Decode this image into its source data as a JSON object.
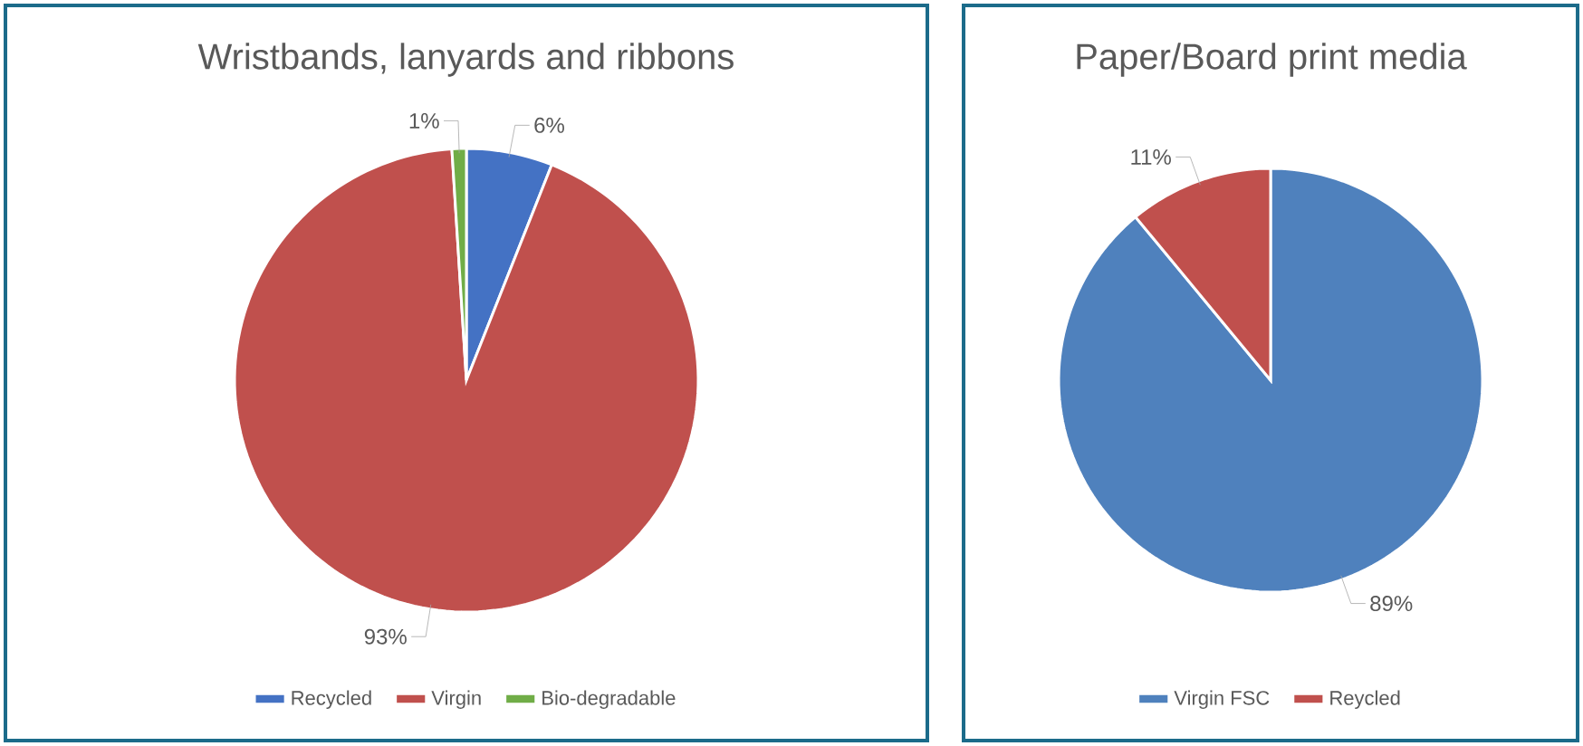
{
  "chart_data": [
    {
      "type": "pie",
      "title": "Wristbands, lanyards and ribbons",
      "categories": [
        "Recycled",
        "Virgin",
        "Bio-degradable"
      ],
      "values": [
        6,
        93,
        1
      ],
      "value_labels": [
        "6%",
        "93%",
        "1%"
      ],
      "colors": [
        "#4472c4",
        "#c0504d",
        "#70ad47"
      ],
      "legend": "bottom"
    },
    {
      "type": "pie",
      "title": "Paper/Board print media",
      "categories": [
        "Virgin FSC",
        "Reycled"
      ],
      "values": [
        89,
        11
      ],
      "value_labels": [
        "89%",
        "11%"
      ],
      "colors": [
        "#4f81bd",
        "#c0504d"
      ],
      "legend": "bottom"
    }
  ]
}
